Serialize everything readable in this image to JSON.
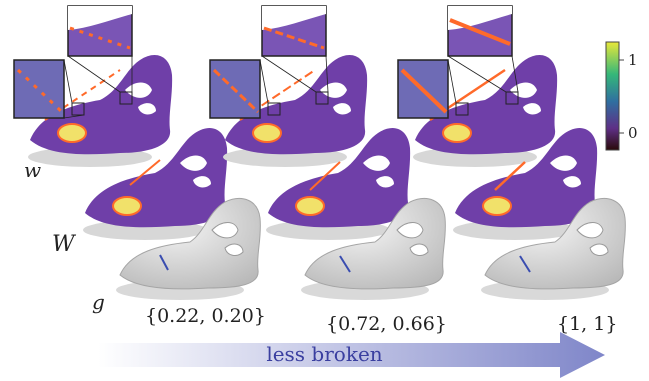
{
  "labels": {
    "w": "w",
    "W": "W",
    "g": "g"
  },
  "columns": [
    {
      "tuple": "{0.22, 0.20}"
    },
    {
      "tuple": "{0.72, 0.66}"
    },
    {
      "tuple": "{1, 1}"
    }
  ],
  "colorbar": {
    "max_label": "1",
    "min_label": "0",
    "colors": [
      "#f2e837",
      "#35b779",
      "#2c728e",
      "#6a3d9a",
      "#2b0f0f"
    ]
  },
  "arrow": {
    "label": "less broken",
    "color": "#5a5fb8"
  }
}
